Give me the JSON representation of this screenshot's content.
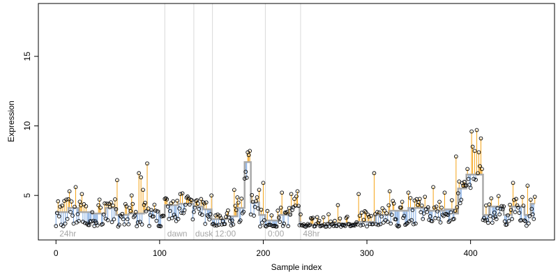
{
  "chart_data": {
    "type": "scatter",
    "title": "",
    "xlabel": "Sample index",
    "ylabel": "Expression",
    "xlim": [
      -17,
      481
    ],
    "ylim": [
      1.8,
      18.8
    ],
    "xticks": [
      0,
      100,
      200,
      300,
      400
    ],
    "yticks": [
      5,
      10,
      15
    ],
    "grid": false,
    "legend": "none",
    "colors": {
      "above_fit": "#f5a316",
      "below_fit": "#7aa6e0",
      "fit_line": "#a9a9a9",
      "point_edge": "#000000",
      "divider": "#d9d9d9",
      "annotation_text": "#a6a6a6"
    },
    "annotations": [
      {
        "x": 2,
        "label": "24hr"
      },
      {
        "x": 106,
        "label": "dawn"
      },
      {
        "x": 133,
        "label": "dusk"
      },
      {
        "x": 152,
        "label": "12:00"
      },
      {
        "x": 203,
        "label": "0:00"
      },
      {
        "x": 237,
        "label": "48hr"
      }
    ],
    "dividers": [
      105,
      133,
      151,
      202,
      236
    ],
    "fit_segments": [
      [
        0,
        3.8
      ],
      [
        12,
        4.1
      ],
      [
        22,
        3.8
      ],
      [
        35,
        3.7
      ],
      [
        48,
        4.1
      ],
      [
        58,
        3.6
      ],
      [
        70,
        3.7
      ],
      [
        85,
        3.9
      ],
      [
        100,
        3.6
      ],
      [
        105,
        4.3
      ],
      [
        118,
        4.4
      ],
      [
        133,
        4.2
      ],
      [
        142,
        4.0
      ],
      [
        150,
        3.3
      ],
      [
        165,
        3.5
      ],
      [
        175,
        4.1
      ],
      [
        182,
        7.4
      ],
      [
        188,
        4.5
      ],
      [
        196,
        3.6
      ],
      [
        202,
        3.2
      ],
      [
        215,
        3.6
      ],
      [
        227,
        4.2
      ],
      [
        235,
        3.1
      ],
      [
        236,
        2.9
      ],
      [
        262,
        3.0
      ],
      [
        290,
        3.1
      ],
      [
        308,
        3.6
      ],
      [
        322,
        3.9
      ],
      [
        340,
        4.1
      ],
      [
        360,
        3.9
      ],
      [
        375,
        4.0
      ],
      [
        384,
        3.7
      ],
      [
        388,
        5.5
      ],
      [
        396,
        6.5
      ],
      [
        412,
        3.6
      ],
      [
        418,
        4.2
      ],
      [
        432,
        3.6
      ],
      [
        440,
        4.2
      ],
      [
        452,
        3.6
      ],
      [
        458,
        4.4
      ],
      [
        462,
        4.4
      ]
    ],
    "features": [
      {
        "x": 0,
        "y": 2.8
      },
      {
        "x": 3,
        "y": 3.5
      },
      {
        "x": 8,
        "y": 4.6
      },
      {
        "x": 10,
        "y": 4.7
      },
      {
        "x": 13,
        "y": 5.3
      },
      {
        "x": 19,
        "y": 5.6
      },
      {
        "x": 25,
        "y": 5.1
      },
      {
        "x": 42,
        "y": 4.7
      },
      {
        "x": 51,
        "y": 4.4
      },
      {
        "x": 59,
        "y": 6.1
      },
      {
        "x": 73,
        "y": 5.0
      },
      {
        "x": 80,
        "y": 6.6
      },
      {
        "x": 82,
        "y": 6.3
      },
      {
        "x": 84,
        "y": 5.4
      },
      {
        "x": 88,
        "y": 7.3
      },
      {
        "x": 106,
        "y": 4.8
      },
      {
        "x": 120,
        "y": 5.1
      },
      {
        "x": 135,
        "y": 4.6
      },
      {
        "x": 150,
        "y": 5.0
      },
      {
        "x": 172,
        "y": 5.4
      },
      {
        "x": 185,
        "y": 8.1
      },
      {
        "x": 186,
        "y": 7.9
      },
      {
        "x": 187,
        "y": 8.2
      },
      {
        "x": 196,
        "y": 5.4
      },
      {
        "x": 200,
        "y": 5.9
      },
      {
        "x": 218,
        "y": 5.2
      },
      {
        "x": 227,
        "y": 5.1
      },
      {
        "x": 233,
        "y": 5.3
      },
      {
        "x": 272,
        "y": 4.3
      },
      {
        "x": 292,
        "y": 5.1
      },
      {
        "x": 307,
        "y": 6.6
      },
      {
        "x": 322,
        "y": 5.3
      },
      {
        "x": 340,
        "y": 5.2
      },
      {
        "x": 356,
        "y": 4.9
      },
      {
        "x": 364,
        "y": 5.6
      },
      {
        "x": 375,
        "y": 5.2
      },
      {
        "x": 386,
        "y": 7.8
      },
      {
        "x": 389,
        "y": 6.0
      },
      {
        "x": 393,
        "y": 5.7
      },
      {
        "x": 397,
        "y": 6.9
      },
      {
        "x": 401,
        "y": 9.6
      },
      {
        "x": 402,
        "y": 8.5
      },
      {
        "x": 404,
        "y": 8.2
      },
      {
        "x": 406,
        "y": 9.7
      },
      {
        "x": 408,
        "y": 8.1
      },
      {
        "x": 410,
        "y": 9.1
      },
      {
        "x": 441,
        "y": 5.9
      },
      {
        "x": 455,
        "y": 5.7
      },
      {
        "x": 462,
        "y": 4.9
      }
    ]
  }
}
